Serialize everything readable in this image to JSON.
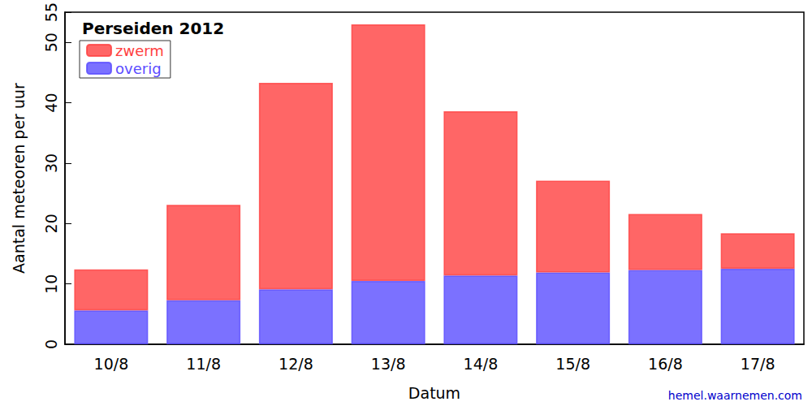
{
  "chart_data": {
    "type": "bar",
    "title": "Perseiden 2012",
    "x_label": "Datum",
    "y_label": "Aantal meteoren per uur",
    "source": "hemel.waarnemen.com",
    "categories": [
      "10/8",
      "11/8",
      "12/8",
      "13/8",
      "14/8",
      "15/8",
      "16/8",
      "17/8"
    ],
    "series": [
      {
        "name": "zwerm",
        "color": "#ff4040",
        "values": [
          6.8,
          15.8,
          34.2,
          42.5,
          27.2,
          15.2,
          9.3,
          5.9
        ]
      },
      {
        "name": "overig",
        "color": "#5a4dff",
        "values": [
          5.6,
          7.3,
          9.1,
          10.5,
          11.4,
          11.9,
          12.3,
          12.5
        ]
      }
    ],
    "stacked": true,
    "ylim": [
      0,
      55
    ],
    "yticks": [
      0,
      10,
      20,
      30,
      40,
      50
    ],
    "grid": false,
    "legend": "top-left"
  }
}
